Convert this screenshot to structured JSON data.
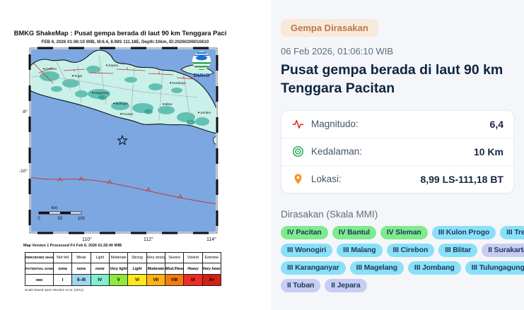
{
  "colors": {
    "panel_bg": "#F4F6F9",
    "badge_bg": "#F8EADB",
    "badge_text": "#C0764A",
    "accent_magnitude": "#D63C2F",
    "accent_depth": "#1FA54A",
    "accent_location": "#F7941D",
    "chip_text": "#1D3A56",
    "mmi_chip": {
      "IV": "#7FEA8E",
      "III": "#89E0F8",
      "II": "#C9CDF4"
    },
    "sea": "#7CA7E0",
    "land": "#C9F0E9",
    "land_dark": "#3FB2A2",
    "trench": "#C13A3A"
  },
  "map": {
    "title": "BMKG ShakeMap : Pusat gempa berada di laut 90 km Tenggara Pacitan",
    "subtitle": "FEB 6, 2026 01:06:10 WIB, M:6.4, 8.99S 111.18E, Depth:10km, ID:20260206010610",
    "logo_text": "BMKG",
    "lat_labels": [
      "-8°",
      "-10°"
    ],
    "lon_labels": [
      "110°",
      "112°",
      "114°"
    ],
    "scale_unit": "km",
    "scale_ticks": [
      "0",
      "50",
      "100"
    ],
    "cities": [
      "Cirebon",
      "Tegal",
      "Jepara",
      "Magelang",
      "Wonogiri",
      "Pacitan",
      "Surabaya",
      "Blitar",
      "Jember"
    ],
    "version_line": "Map Version 1 Processed Fri Feb 6, 2026 01:26:40 WIB",
    "scale_note": "Scale based upon Worden et al. (2011)",
    "mmi_table": {
      "row_headers": [
        "PERCEIVED SHAKING",
        "POTENTIAL DAMAGE",
        "MMI"
      ],
      "shaking": [
        "Not felt",
        "Weak",
        "Light",
        "Moderate",
        "Strong",
        "Very strong",
        "Severe",
        "Violent",
        "Extreme"
      ],
      "damage": [
        "none",
        "none",
        "none",
        "Very light",
        "Light",
        "Moderate",
        "Mod./Heavy",
        "Heavy",
        "Very heavy"
      ],
      "mmi": [
        "I",
        "II–III",
        "IV",
        "V",
        "VI",
        "VII",
        "VIII",
        "IX",
        "X+"
      ],
      "cell_colors": [
        "#FFFFFF",
        "#A2D6F2",
        "#7FEFD2",
        "#8FE83C",
        "#FFE81A",
        "#FFB217",
        "#F57A0D",
        "#EE2C24",
        "#D12015"
      ]
    }
  },
  "panel": {
    "badge": "Gempa Dirasakan",
    "datetime": "06 Feb 2026, 01:06:10 WIB",
    "title": "Pusat gempa berada di laut 90 km Tenggara Pacitan",
    "stats": [
      {
        "icon": "magnitude-icon",
        "label": "Magnitudo:",
        "value": "6,4"
      },
      {
        "icon": "depth-icon",
        "label": "Kedalaman:",
        "value": "10 Km"
      },
      {
        "icon": "location-icon",
        "label": "Lokasi:",
        "value": "8,99 LS-111,18 BT"
      }
    ],
    "felt_header": "Dirasakan (Skala MMI)",
    "felt_regions": [
      {
        "label": "IV Pacitan",
        "level": "IV"
      },
      {
        "label": "IV Bantul",
        "level": "IV"
      },
      {
        "label": "IV Sleman",
        "level": "IV"
      },
      {
        "label": "III Kulon Progo",
        "level": "III"
      },
      {
        "label": "III Trenggalek",
        "level": "III"
      },
      {
        "label": "III Wonogiri",
        "level": "III"
      },
      {
        "label": "III Malang",
        "level": "III"
      },
      {
        "label": "III Cirebon",
        "level": "III"
      },
      {
        "label": "III Blitar",
        "level": "III"
      },
      {
        "label": "II Surakarta",
        "level": "II"
      },
      {
        "label": "III Karanganyar",
        "level": "III"
      },
      {
        "label": "III Magelang",
        "level": "III"
      },
      {
        "label": "III Jombang",
        "level": "III"
      },
      {
        "label": "III Tulungagung",
        "level": "III"
      },
      {
        "label": "II Tuban",
        "level": "II"
      },
      {
        "label": "II Jepara",
        "level": "II"
      }
    ]
  }
}
